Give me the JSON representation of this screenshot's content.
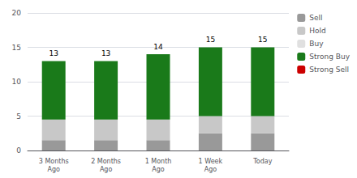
{
  "chart_data": {
    "type": "bar",
    "stacked": true,
    "categories": [
      "3 Months\nAgo",
      "2 Months\nAgo",
      "1 Month\nAgo",
      "1 Week\nAgo",
      "Today"
    ],
    "series": [
      {
        "name": "Sell",
        "color": "#999999",
        "values": [
          1.5,
          1.5,
          1.5,
          2.5,
          2.5
        ]
      },
      {
        "name": "Hold",
        "color": "#c8c8c8",
        "values": [
          3.0,
          3.0,
          3.0,
          2.5,
          2.5
        ]
      },
      {
        "name": "Buy",
        "color": "#e0e0e0",
        "values": [
          0,
          0,
          0,
          0,
          0
        ]
      },
      {
        "name": "Strong Buy",
        "color": "#1a7a1a",
        "values": [
          8.5,
          8.5,
          9.5,
          10.0,
          10.0
        ]
      },
      {
        "name": "Strong Sell",
        "color": "#cc0000",
        "values": [
          0,
          0,
          0,
          0,
          0
        ]
      }
    ],
    "bar_totals": [
      13,
      13,
      14,
      15,
      15
    ],
    "ylim": [
      0,
      20
    ],
    "yticks": [
      0,
      5,
      10,
      15,
      20
    ],
    "grid": true,
    "legend": "right"
  }
}
